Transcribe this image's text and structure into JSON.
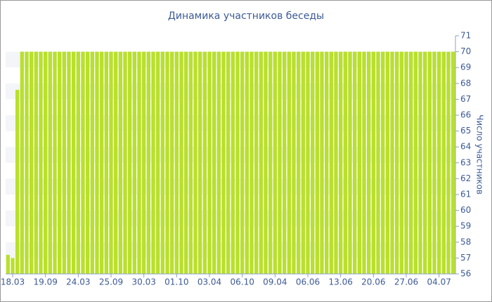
{
  "chart_data": {
    "type": "bar",
    "title": "Динамика участников беседы",
    "y_label": "Число участников",
    "categories": [
      null,
      "18.03",
      null,
      null,
      null,
      null,
      null,
      null,
      "19.09",
      null,
      null,
      null,
      null,
      null,
      null,
      "24.03",
      null,
      null,
      null,
      null,
      null,
      null,
      "25.09",
      null,
      null,
      null,
      null,
      null,
      null,
      "30.03",
      null,
      null,
      null,
      null,
      null,
      null,
      "01.10",
      null,
      null,
      null,
      null,
      null,
      null,
      "03.04",
      null,
      null,
      null,
      null,
      null,
      null,
      "06.10",
      null,
      null,
      null,
      null,
      null,
      null,
      "09.04",
      null,
      null,
      null,
      null,
      null,
      null,
      "06.06",
      null,
      null,
      null,
      null,
      null,
      null,
      "13.06",
      null,
      null,
      null,
      null,
      null,
      null,
      "20.06",
      null,
      null,
      null,
      null,
      null,
      null,
      "27.06",
      null,
      null,
      null,
      null,
      null,
      null,
      "04.07",
      null,
      null,
      null
    ],
    "values": [
      57.2,
      57,
      67.6,
      70,
      70,
      70,
      70,
      70,
      70,
      70,
      70,
      70,
      70,
      70,
      70,
      70,
      70,
      70,
      70,
      70,
      70,
      70,
      70,
      70,
      70,
      70,
      70,
      70,
      70,
      70,
      70,
      70,
      70,
      70,
      70,
      70,
      70,
      70,
      70,
      70,
      70,
      70,
      70,
      70,
      70,
      70,
      70,
      70,
      70,
      70,
      70,
      70,
      70,
      70,
      70,
      70,
      70,
      70,
      70,
      70,
      70,
      70,
      70,
      70,
      70,
      70,
      70,
      70,
      70,
      70,
      70,
      70,
      70,
      70,
      70,
      70,
      70,
      70,
      70,
      70,
      70,
      70,
      70,
      70,
      70,
      70,
      70,
      70,
      70,
      70,
      70,
      70,
      70,
      70,
      70,
      70
    ],
    "color": "#b9e02c",
    "ylim": [
      56,
      71
    ],
    "yticks": [
      56,
      57,
      58,
      59,
      60,
      61,
      62,
      63,
      64,
      65,
      66,
      67,
      68,
      69,
      70,
      71
    ],
    "y_axis_side": "right",
    "grid": "bands"
  }
}
